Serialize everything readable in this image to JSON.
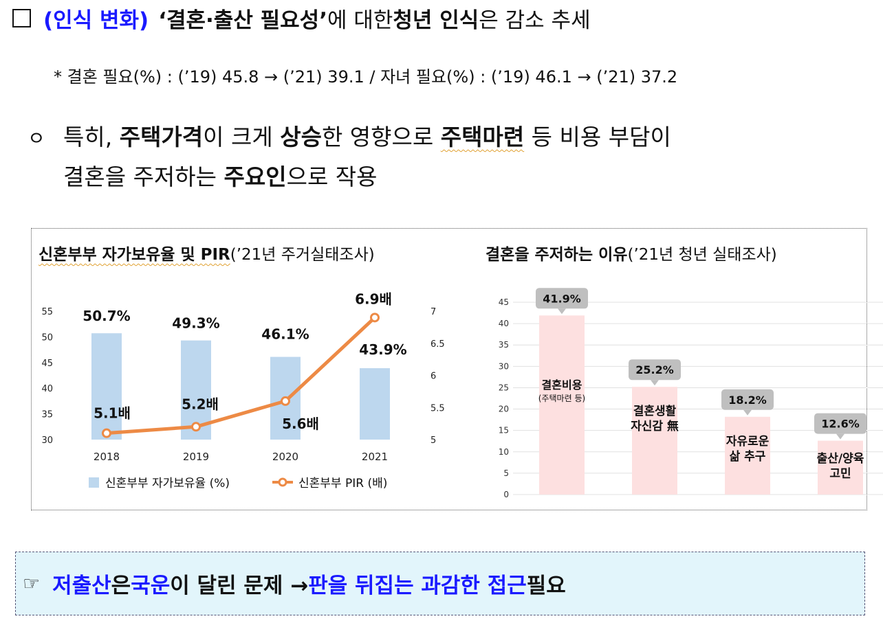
{
  "heading": {
    "tag": "(인식 변화)",
    "text1": "‘결혼·출산 필요성’",
    "text2": "에 대한 ",
    "text3": "청년 인식",
    "text4": "은 감소 추세"
  },
  "note": "* 결혼 필요(%) : (’19) 45.8 → (’21) 39.1 / 자녀 필요(%) : (’19) 46.1 → (’21) 37.2",
  "bullet": {
    "mark": "ㅇ",
    "l1_a": "특히, ",
    "l1_b": "주택가격",
    "l1_c": "이 크게 ",
    "l1_d": "상승",
    "l1_e": "한 영향으로 ",
    "l1_f": "주택마련",
    "l1_g": " 등 비용 부담이",
    "l2_a": "결혼을 주저하는 ",
    "l2_b": "주요인",
    "l2_c": "으로 작용"
  },
  "left_chart_title": {
    "bold": "신혼부부 자가보유율 및 PIR",
    "normal": "(’21년 주거실태조사)"
  },
  "right_chart_title": {
    "bold": "결혼을 주저하는 이유",
    "normal": "(’21년 청년 실태조사)"
  },
  "chart_data": [
    {
      "type": "bar",
      "categories": [
        "2018",
        "2019",
        "2020",
        "2021"
      ],
      "series": [
        {
          "name": "신혼부부 자가보유율 (%)",
          "type": "bar",
          "axis": "left",
          "values": [
            50.7,
            49.3,
            46.1,
            43.9
          ],
          "labels": [
            "50.7%",
            "49.3%",
            "46.1%",
            "43.9%"
          ],
          "color": "#bdd7ee"
        },
        {
          "name": "신혼부부 PIR (배)",
          "type": "line",
          "axis": "right",
          "values": [
            5.1,
            5.2,
            5.6,
            6.9
          ],
          "labels": [
            "5.1배",
            "5.2배",
            "5.6배",
            "6.9배"
          ],
          "color": "#ed8a45"
        }
      ],
      "left_axis": {
        "min": 30,
        "max": 55,
        "ticks": [
          "30",
          "35",
          "40",
          "45",
          "50",
          "55"
        ]
      },
      "right_axis": {
        "min": 5,
        "max": 7,
        "ticks": [
          "5",
          "5.5",
          "6",
          "6.5",
          "7"
        ]
      },
      "legend_position": "bottom",
      "grid": false
    },
    {
      "type": "bar",
      "categories": [
        [
          "결혼비용",
          "(주택마련 등)"
        ],
        [
          "결혼생활",
          "자신감 無"
        ],
        [
          "자유로운",
          "삶 추구"
        ],
        [
          "출산/양육",
          "고민"
        ]
      ],
      "values": [
        41.9,
        25.2,
        18.2,
        12.6
      ],
      "labels": [
        "41.9%",
        "25.2%",
        "18.2%",
        "12.6%"
      ],
      "color": "#fde0e0",
      "callout_color": "#bfbfbf",
      "y_axis": {
        "min": 0,
        "max": 45,
        "ticks": [
          "0",
          "5",
          "10",
          "15",
          "20",
          "25",
          "30",
          "35",
          "40",
          "45"
        ]
      },
      "grid": true
    }
  ],
  "footer": {
    "icon": "☞",
    "p1": "저출산",
    "p2": "은 ",
    "p3": "국운",
    "p4": "이 달린 문제 → ",
    "p5": "판을 뒤집는 과감한 접근",
    "p6": " 필요"
  }
}
